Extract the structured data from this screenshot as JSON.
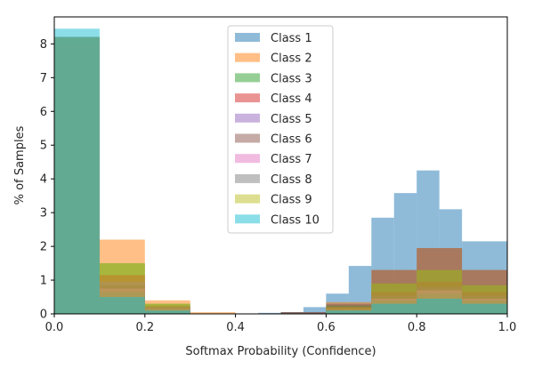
{
  "chart_data": {
    "type": "histogram",
    "title": "",
    "xlabel": "Softmax Probability (Confidence)",
    "ylabel": "% of Samples",
    "xlim": [
      0,
      1
    ],
    "ylim": [
      0,
      8.8
    ],
    "xticks": [
      0.0,
      0.2,
      0.4,
      0.6,
      0.8,
      1.0
    ],
    "xtick_labels": [
      "0.0",
      "0.2",
      "0.4",
      "0.6",
      "0.8",
      "1.0"
    ],
    "yticks": [
      0,
      1,
      2,
      3,
      4,
      5,
      6,
      7,
      8
    ],
    "ytick_labels": [
      "0",
      "1",
      "2",
      "3",
      "4",
      "5",
      "6",
      "7",
      "8"
    ],
    "grid": false,
    "legend_position": "top-center",
    "alpha": 0.5,
    "series": [
      {
        "name": "Class 1",
        "color": "#1f77b4",
        "bins": [
          {
            "x0": 0.0,
            "x1": 0.1,
            "y": 8.2
          },
          {
            "x0": 0.1,
            "x1": 0.2,
            "y": 0.5
          },
          {
            "x0": 0.2,
            "x1": 0.3,
            "y": 0.1
          },
          {
            "x0": 0.45,
            "x1": 0.5,
            "y": 0.03
          },
          {
            "x0": 0.5,
            "x1": 0.55,
            "y": 0.05
          },
          {
            "x0": 0.55,
            "x1": 0.6,
            "y": 0.2
          },
          {
            "x0": 0.6,
            "x1": 0.65,
            "y": 0.6
          },
          {
            "x0": 0.65,
            "x1": 0.7,
            "y": 1.42
          },
          {
            "x0": 0.7,
            "x1": 0.75,
            "y": 2.85
          },
          {
            "x0": 0.75,
            "x1": 0.8,
            "y": 3.58
          },
          {
            "x0": 0.8,
            "x1": 0.85,
            "y": 4.25
          },
          {
            "x0": 0.85,
            "x1": 0.9,
            "y": 3.1
          },
          {
            "x0": 0.9,
            "x1": 1.0,
            "y": 2.15
          }
        ]
      },
      {
        "name": "Class 2",
        "color": "#ff7f0e",
        "bins": [
          {
            "x0": 0.0,
            "x1": 0.1,
            "y": 8.0
          },
          {
            "x0": 0.1,
            "x1": 0.2,
            "y": 2.2
          },
          {
            "x0": 0.2,
            "x1": 0.3,
            "y": 0.4
          },
          {
            "x0": 0.3,
            "x1": 0.4,
            "y": 0.05
          },
          {
            "x0": 0.5,
            "x1": 0.6,
            "y": 0.05
          },
          {
            "x0": 0.6,
            "x1": 0.7,
            "y": 0.35
          },
          {
            "x0": 0.7,
            "x1": 0.8,
            "y": 1.3
          },
          {
            "x0": 0.8,
            "x1": 0.9,
            "y": 1.95
          },
          {
            "x0": 0.9,
            "x1": 1.0,
            "y": 1.3
          }
        ]
      },
      {
        "name": "Class 3",
        "color": "#2ca02c",
        "bins": [
          {
            "x0": 0.0,
            "x1": 0.1,
            "y": 8.2
          },
          {
            "x0": 0.1,
            "x1": 0.2,
            "y": 1.5
          },
          {
            "x0": 0.2,
            "x1": 0.3,
            "y": 0.3
          },
          {
            "x0": 0.5,
            "x1": 0.6,
            "y": 0.05
          },
          {
            "x0": 0.6,
            "x1": 0.7,
            "y": 0.25
          },
          {
            "x0": 0.7,
            "x1": 0.8,
            "y": 0.9
          },
          {
            "x0": 0.8,
            "x1": 0.9,
            "y": 1.3
          },
          {
            "x0": 0.9,
            "x1": 1.0,
            "y": 0.85
          }
        ]
      },
      {
        "name": "Class 4",
        "color": "#d62728",
        "bins": [
          {
            "x0": 0.0,
            "x1": 0.1,
            "y": 8.2
          },
          {
            "x0": 0.1,
            "x1": 0.2,
            "y": 1.15
          },
          {
            "x0": 0.2,
            "x1": 0.3,
            "y": 0.2
          },
          {
            "x0": 0.6,
            "x1": 0.7,
            "y": 0.2
          },
          {
            "x0": 0.7,
            "x1": 0.8,
            "y": 0.65
          },
          {
            "x0": 0.8,
            "x1": 0.9,
            "y": 0.95
          },
          {
            "x0": 0.9,
            "x1": 1.0,
            "y": 0.65
          }
        ]
      },
      {
        "name": "Class 5",
        "color": "#9467bd",
        "bins": [
          {
            "x0": 0.0,
            "x1": 0.1,
            "y": 8.2
          },
          {
            "x0": 0.1,
            "x1": 0.2,
            "y": 0.95
          },
          {
            "x0": 0.2,
            "x1": 0.3,
            "y": 0.2
          },
          {
            "x0": 0.5,
            "x1": 0.6,
            "y": 0.05
          },
          {
            "x0": 0.6,
            "x1": 0.7,
            "y": 0.15
          },
          {
            "x0": 0.7,
            "x1": 0.8,
            "y": 0.55
          },
          {
            "x0": 0.8,
            "x1": 0.9,
            "y": 0.8
          },
          {
            "x0": 0.9,
            "x1": 1.0,
            "y": 0.55
          }
        ]
      },
      {
        "name": "Class 6",
        "color": "#8c564b",
        "bins": [
          {
            "x0": 0.0,
            "x1": 0.1,
            "y": 8.2
          },
          {
            "x0": 0.1,
            "x1": 0.2,
            "y": 0.85
          },
          {
            "x0": 0.2,
            "x1": 0.3,
            "y": 0.25
          },
          {
            "x0": 0.5,
            "x1": 0.6,
            "y": 0.05
          },
          {
            "x0": 0.6,
            "x1": 0.7,
            "y": 0.3
          },
          {
            "x0": 0.7,
            "x1": 0.8,
            "y": 1.3
          },
          {
            "x0": 0.8,
            "x1": 0.9,
            "y": 1.95
          },
          {
            "x0": 0.9,
            "x1": 1.0,
            "y": 1.3
          }
        ]
      },
      {
        "name": "Class 7",
        "color": "#e377c2",
        "bins": [
          {
            "x0": 0.0,
            "x1": 0.1,
            "y": 8.2
          },
          {
            "x0": 0.1,
            "x1": 0.2,
            "y": 0.75
          },
          {
            "x0": 0.2,
            "x1": 0.3,
            "y": 0.15
          },
          {
            "x0": 0.6,
            "x1": 0.7,
            "y": 0.12
          },
          {
            "x0": 0.7,
            "x1": 0.8,
            "y": 0.45
          },
          {
            "x0": 0.8,
            "x1": 0.9,
            "y": 0.7
          },
          {
            "x0": 0.9,
            "x1": 1.0,
            "y": 0.45
          }
        ]
      },
      {
        "name": "Class 8",
        "color": "#7f7f7f",
        "bins": [
          {
            "x0": 0.0,
            "x1": 0.1,
            "y": 8.2
          },
          {
            "x0": 0.1,
            "x1": 0.2,
            "y": 0.65
          },
          {
            "x0": 0.2,
            "x1": 0.3,
            "y": 0.15
          },
          {
            "x0": 0.6,
            "x1": 0.7,
            "y": 0.1
          },
          {
            "x0": 0.7,
            "x1": 0.8,
            "y": 0.4
          },
          {
            "x0": 0.8,
            "x1": 0.9,
            "y": 0.6
          },
          {
            "x0": 0.9,
            "x1": 1.0,
            "y": 0.4
          }
        ]
      },
      {
        "name": "Class 9",
        "color": "#bcbd22",
        "bins": [
          {
            "x0": 0.0,
            "x1": 0.1,
            "y": 8.2
          },
          {
            "x0": 0.1,
            "x1": 0.2,
            "y": 1.5
          },
          {
            "x0": 0.2,
            "x1": 0.3,
            "y": 0.3
          },
          {
            "x0": 0.6,
            "x1": 0.7,
            "y": 0.2
          },
          {
            "x0": 0.7,
            "x1": 0.8,
            "y": 0.9
          },
          {
            "x0": 0.8,
            "x1": 0.9,
            "y": 1.3
          },
          {
            "x0": 0.9,
            "x1": 1.0,
            "y": 0.85
          }
        ]
      },
      {
        "name": "Class 10",
        "color": "#17becf",
        "bins": [
          {
            "x0": 0.0,
            "x1": 0.1,
            "y": 8.45
          },
          {
            "x0": 0.1,
            "x1": 0.2,
            "y": 0.5
          },
          {
            "x0": 0.2,
            "x1": 0.3,
            "y": 0.1
          },
          {
            "x0": 0.6,
            "x1": 0.7,
            "y": 0.1
          },
          {
            "x0": 0.7,
            "x1": 0.8,
            "y": 0.3
          },
          {
            "x0": 0.8,
            "x1": 0.9,
            "y": 0.45
          },
          {
            "x0": 0.9,
            "x1": 1.0,
            "y": 0.3
          }
        ]
      }
    ]
  }
}
